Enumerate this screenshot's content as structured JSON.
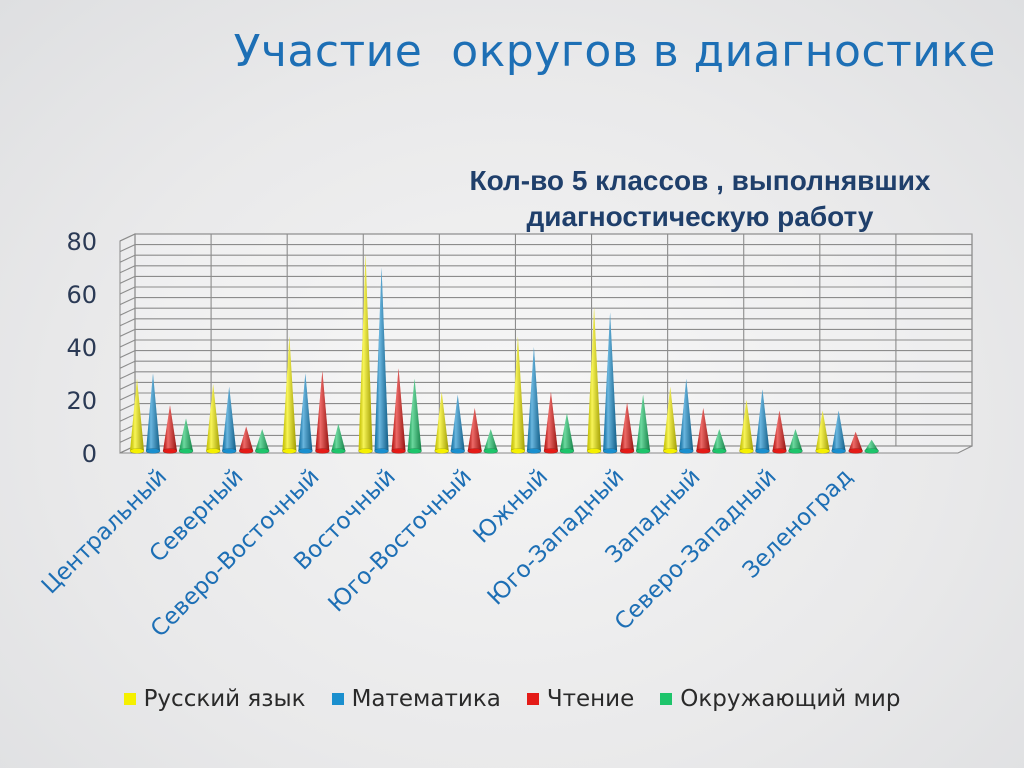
{
  "slide_title": "Участие  округов в диагностике",
  "chart_data": {
    "type": "bar",
    "title_lines": [
      "Кол-во 5 классов , выполнявших",
      "диагностическую работу"
    ],
    "categories": [
      "Центральный",
      "Северный",
      "Северо-Восточный",
      "Восточный",
      "Юго-Восточный",
      "Южный",
      "Юго-Западный",
      "Западный",
      "Северо-Западный",
      "Зеленоград"
    ],
    "series": [
      {
        "name": "Русский язык",
        "color": "#f5f000",
        "values": [
          28,
          26,
          44,
          75,
          23,
          44,
          55,
          25,
          20,
          16
        ]
      },
      {
        "name": "Математика",
        "color": "#1a8fce",
        "values": [
          30,
          25,
          30,
          70,
          22,
          40,
          53,
          28,
          24,
          16
        ]
      },
      {
        "name": "Чтение",
        "color": "#e41b17",
        "values": [
          18,
          10,
          31,
          32,
          17,
          23,
          19,
          17,
          16,
          8
        ]
      },
      {
        "name": "Окружающий мир",
        "color": "#1ec46b",
        "values": [
          13,
          9,
          11,
          28,
          9,
          15,
          22,
          9,
          9,
          5
        ]
      }
    ],
    "yticks": [
      0,
      20,
      40,
      60,
      80
    ],
    "ylim": [
      0,
      80
    ],
    "grid": true,
    "legend_position": "bottom"
  }
}
